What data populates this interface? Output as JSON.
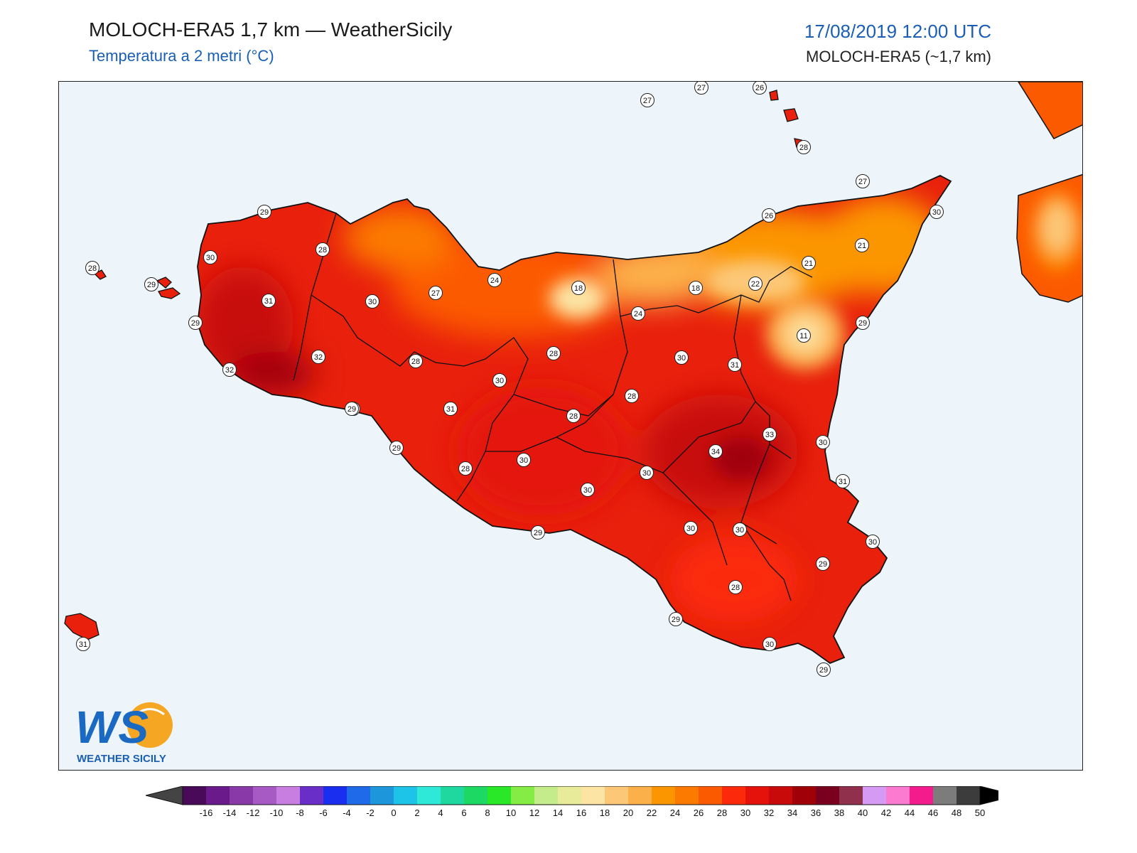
{
  "header": {
    "title": "MOLOCH-ERA5 1,7 km — WeatherSicily",
    "subtitle": "Temperatura a 2 metri (°C)",
    "datetime": "17/08/2019 12:00 UTC",
    "model": "MOLOCH-ERA5 (~1,7 km)"
  },
  "logo": {
    "mark": "WS",
    "text": "WEATHER SICILY"
  },
  "colors": {
    "sea": "#edf5fa",
    "base_land": "#e8200c",
    "coast": "#111111"
  },
  "colorbar": {
    "ticks": [
      "-16",
      "-14",
      "-12",
      "-10",
      "-8",
      "-6",
      "-4",
      "-2",
      "0",
      "2",
      "4",
      "6",
      "8",
      "10",
      "12",
      "14",
      "16",
      "18",
      "20",
      "22",
      "24",
      "26",
      "28",
      "30",
      "32",
      "34",
      "36",
      "38",
      "40",
      "42",
      "44",
      "46",
      "48",
      "50"
    ],
    "colors": [
      "#4a0a5a",
      "#6a1a8a",
      "#8a3aa8",
      "#a85ac4",
      "#c87ee0",
      "#6a2ec8",
      "#1a2ef0",
      "#1e6ae8",
      "#1e96dc",
      "#1ec4e8",
      "#2ee8d8",
      "#1ed8a0",
      "#1ed864",
      "#28e828",
      "#84ec44",
      "#c4ec8a",
      "#e8ec9a",
      "#fce4a4",
      "#fcc878",
      "#fcb04a",
      "#fc9600",
      "#fc7a00",
      "#fc5a00",
      "#fc2a0a",
      "#e4120a",
      "#c80a0a",
      "#a00008",
      "#7a0020",
      "#90304c",
      "#d49af4",
      "#fc7ad0",
      "#f41c8c",
      "#7c7c7c",
      "#3c3c3c",
      "#000000"
    ]
  },
  "stations": [
    {
      "v": 29
    },
    {
      "v": 28
    },
    {
      "v": 30
    },
    {
      "v": 28
    },
    {
      "v": 29
    },
    {
      "v": 31
    },
    {
      "v": 29
    },
    {
      "v": 32
    },
    {
      "v": 32
    },
    {
      "v": 30
    },
    {
      "v": 29
    },
    {
      "v": 27
    },
    {
      "v": 24
    },
    {
      "v": 28
    },
    {
      "v": 28
    },
    {
      "v": 30
    },
    {
      "v": 31
    },
    {
      "v": 18
    },
    {
      "v": 24
    },
    {
      "v": 18
    },
    {
      "v": 22
    },
    {
      "v": 26
    },
    {
      "v": 21
    },
    {
      "v": 21
    },
    {
      "v": 27
    },
    {
      "v": 30
    },
    {
      "v": 11
    },
    {
      "v": 29
    },
    {
      "v": 30
    },
    {
      "v": 31
    },
    {
      "v": 28
    },
    {
      "v": 28
    },
    {
      "v": 29
    },
    {
      "v": 28
    },
    {
      "v": 30
    },
    {
      "v": 29
    },
    {
      "v": 30
    },
    {
      "v": 29
    },
    {
      "v": 30
    },
    {
      "v": 34
    },
    {
      "v": 33
    },
    {
      "v": 30
    },
    {
      "v": 30
    },
    {
      "v": 30
    },
    {
      "v": 31
    },
    {
      "v": 30
    },
    {
      "v": 29
    },
    {
      "v": 28
    },
    {
      "v": 29
    },
    {
      "v": 30
    },
    {
      "v": 29
    },
    {
      "v": 27
    },
    {
      "v": 27
    },
    {
      "v": 26
    },
    {
      "v": 28
    },
    {
      "v": 31
    }
  ]
}
